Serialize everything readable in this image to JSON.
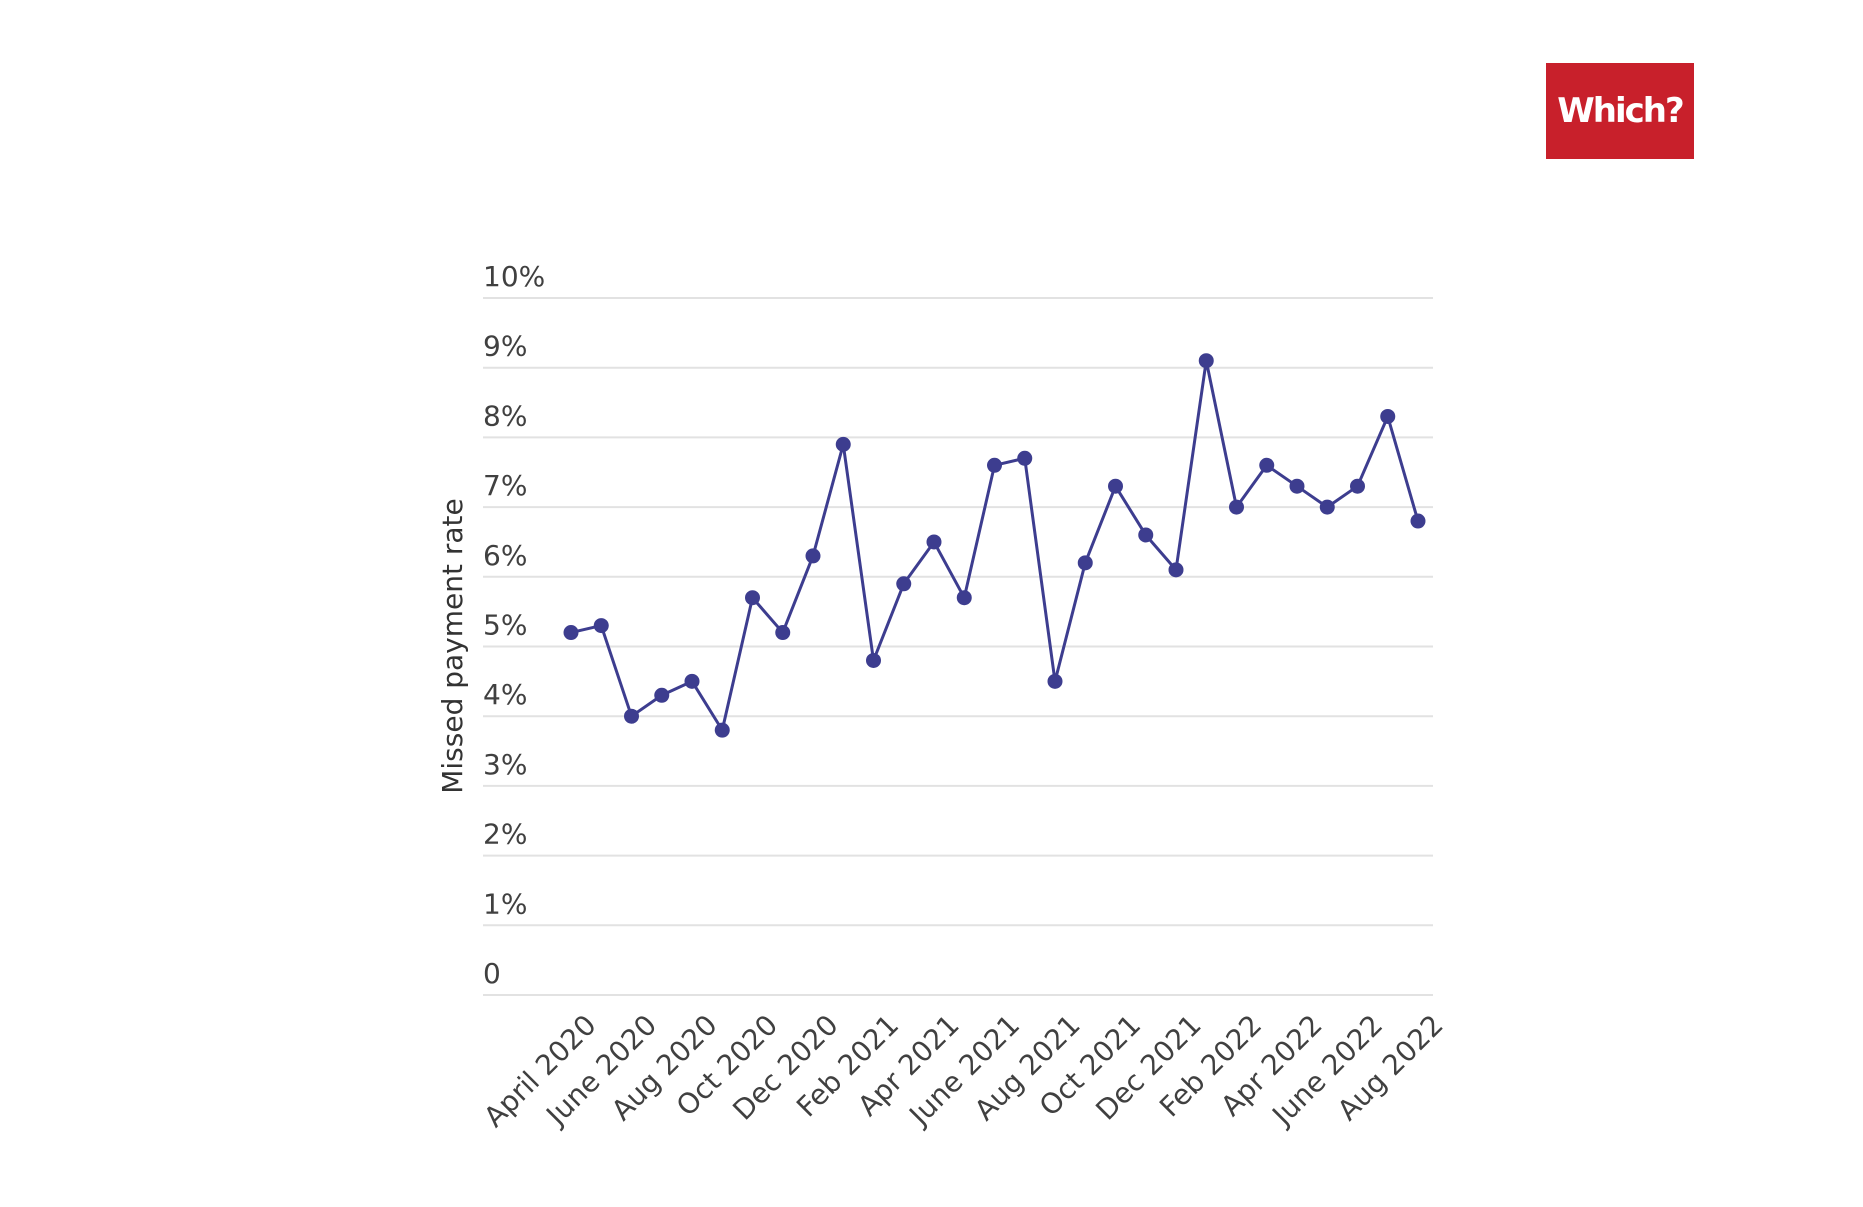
{
  "logo": {
    "text": "Which?",
    "background_color": "#c8202b",
    "text_color": "#ffffff"
  },
  "chart_data": {
    "type": "line",
    "title": "",
    "xlabel": "",
    "ylabel": "Missed payment rate",
    "ylim": [
      0,
      10
    ],
    "y_ticks": [
      0,
      1,
      2,
      3,
      4,
      5,
      6,
      7,
      8,
      9,
      10
    ],
    "y_tick_labels": [
      "0",
      "1%",
      "2%",
      "3%",
      "4%",
      "5%",
      "6%",
      "7%",
      "8%",
      "9%",
      "10%"
    ],
    "x_tick_labels": [
      "April 2020",
      "June 2020",
      "Aug 2020",
      "Oct 2020",
      "Dec 2020",
      "Feb 2021",
      "Apr 2021",
      "June 2021",
      "Aug 2021",
      "Oct 2021",
      "Dec 2021",
      "Feb 2022",
      "Apr 2022",
      "June 2022",
      "Aug 2022"
    ],
    "grid": true,
    "line_color": "#3d3d8f",
    "gridline_color": "#e2e2e2",
    "series": [
      {
        "values": [
          5.2,
          5.3,
          4.0,
          4.3,
          4.5,
          3.8,
          5.7,
          5.2,
          6.3,
          7.9,
          4.8,
          5.9,
          6.5,
          5.7,
          7.6,
          7.7,
          4.5,
          6.2,
          7.3,
          6.6,
          6.1,
          9.1,
          7.0,
          7.6,
          7.3,
          7.0,
          7.3,
          8.3,
          6.8
        ]
      }
    ]
  }
}
